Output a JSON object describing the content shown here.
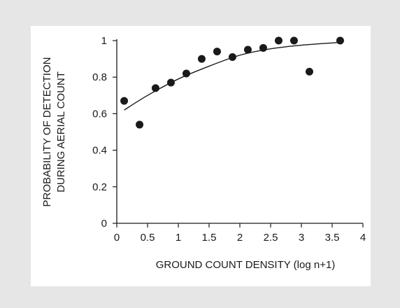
{
  "chart_data": {
    "type": "scatter",
    "xlabel": "GROUND COUNT DENSITY (log n+1)",
    "ylabel_lines": [
      "PROBABILITY OF DETECTION",
      "DURING AERIAL COUNT"
    ],
    "xlim": [
      0,
      4
    ],
    "ylim": [
      0,
      1
    ],
    "xticks": [
      0,
      0.5,
      1,
      1.5,
      2,
      2.5,
      3,
      3.5,
      4
    ],
    "xtick_labels": [
      "0",
      "0.5",
      "1",
      "1.5",
      "2",
      "2.5",
      "3",
      "3.5",
      "4"
    ],
    "yticks": [
      0,
      0.2,
      0.4,
      0.6,
      0.8,
      1
    ],
    "ytick_labels": [
      "0",
      "0.2",
      "0.4",
      "0.6",
      "0.8",
      "1"
    ],
    "grid": false,
    "series": [
      {
        "points": [
          {
            "x": 0.12,
            "y": 0.67
          },
          {
            "x": 0.37,
            "y": 0.54
          },
          {
            "x": 0.63,
            "y": 0.74
          },
          {
            "x": 0.88,
            "y": 0.77
          },
          {
            "x": 1.13,
            "y": 0.82
          },
          {
            "x": 1.38,
            "y": 0.9
          },
          {
            "x": 1.63,
            "y": 0.94
          },
          {
            "x": 1.88,
            "y": 0.91
          },
          {
            "x": 2.13,
            "y": 0.95
          },
          {
            "x": 2.38,
            "y": 0.96
          },
          {
            "x": 2.63,
            "y": 1.0
          },
          {
            "x": 2.88,
            "y": 1.0
          },
          {
            "x": 3.13,
            "y": 0.83
          },
          {
            "x": 3.63,
            "y": 1.0
          }
        ]
      }
    ],
    "fit_curve": [
      {
        "x": 0.12,
        "y": 0.62
      },
      {
        "x": 0.5,
        "y": 0.7
      },
      {
        "x": 1.0,
        "y": 0.79
      },
      {
        "x": 1.5,
        "y": 0.86
      },
      {
        "x": 2.0,
        "y": 0.92
      },
      {
        "x": 2.5,
        "y": 0.955
      },
      {
        "x": 3.0,
        "y": 0.975
      },
      {
        "x": 3.63,
        "y": 0.99
      }
    ],
    "colors": {
      "background": "#e6e6e6",
      "panel": "#ffffff",
      "marks": "#1a1a1a"
    }
  }
}
